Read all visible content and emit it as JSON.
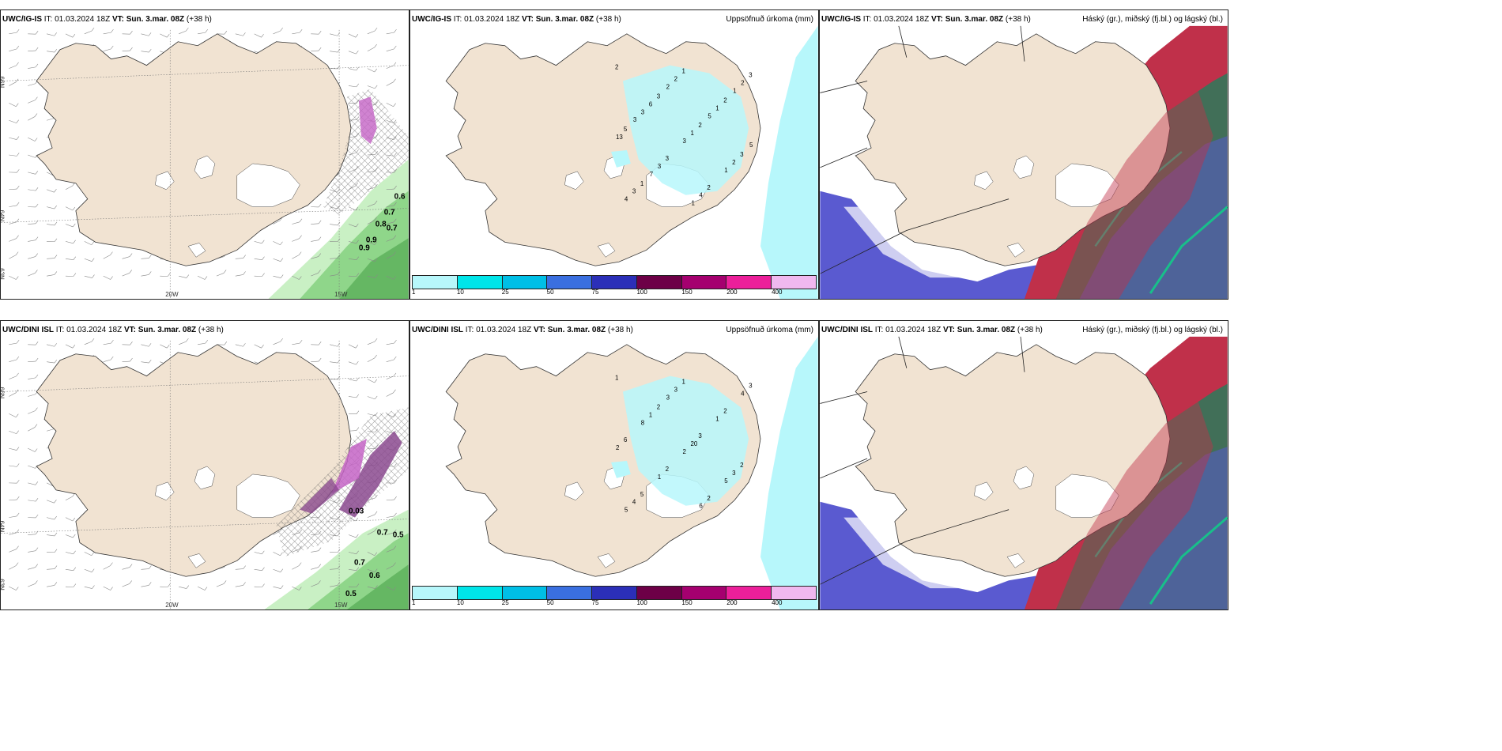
{
  "panels": [
    {
      "id": "ul",
      "model": "UWC/IG-IS",
      "it": "IT: 01.03.2024 18Z",
      "vt_label": "VT:",
      "vt": "Sun. 3.mar. 08Z",
      "lead": "(+38 h)",
      "right": "",
      "type": "wind"
    },
    {
      "id": "um",
      "model": "UWC/IG-IS",
      "it": "IT: 01.03.2024 18Z",
      "vt_label": "VT:",
      "vt": "Sun. 3.mar. 08Z",
      "lead": "(+38 h)",
      "right": "Uppsöfnuð úrkoma (mm)",
      "type": "precip"
    },
    {
      "id": "ur",
      "model": "UWC/IG-IS",
      "it": "IT: 01.03.2024 18Z",
      "vt_label": "VT:",
      "vt": "Sun. 3.mar. 08Z",
      "lead": "(+38 h)",
      "right": "Háský (gr.), miðský (fj.bl.) og lágský (bl.)",
      "type": "cloud"
    },
    {
      "id": "ll",
      "model": "UWC/DINI ISL",
      "it": "IT: 01.03.2024 18Z",
      "vt_label": "VT:",
      "vt": "Sun. 3.mar. 08Z",
      "lead": "(+38 h)",
      "right": "",
      "type": "wind"
    },
    {
      "id": "lm",
      "model": "UWC/DINI ISL",
      "it": "IT: 01.03.2024 18Z",
      "vt_label": "VT:",
      "vt": "Sun. 3.mar. 08Z",
      "lead": "(+38 h)",
      "right": "Uppsöfnuð úrkoma (mm)",
      "type": "precip"
    },
    {
      "id": "lr",
      "model": "UWC/DINI ISL",
      "it": "IT: 01.03.2024 18Z",
      "vt_label": "VT:",
      "vt": "Sun. 3.mar. 08Z",
      "lead": "(+38 h)",
      "right": "Háský (gr.), miðský (fj.bl.) og lágský (bl.)",
      "type": "cloud"
    }
  ],
  "axes": {
    "lon_20w": "20W",
    "lon_15w": "15W",
    "lat_66n": "66N",
    "lat_64n": "64N",
    "lat_63n": "63N"
  },
  "precip_legend": {
    "values": [
      "1",
      "10",
      "25",
      "50",
      "75",
      "100",
      "150",
      "200",
      "400"
    ],
    "colors": [
      "#b7f7fb",
      "#00e5e9",
      "#00bfe6",
      "#3a6fe0",
      "#2b2fb8",
      "#6d0047",
      "#a5006f",
      "#ec1f9a",
      "#f0b8ef"
    ]
  },
  "wind_labels_upper": [
    "0.6",
    "0.7",
    "0.8",
    "0.7",
    "0.9",
    "0.9"
  ],
  "wind_labels_lower": [
    "0.7",
    "0.5",
    "0.7",
    "0.6",
    "0.5",
    "0.03"
  ],
  "precip_upper": [
    "2",
    "3",
    "2",
    "3",
    "1",
    "1",
    "2",
    "5",
    "3",
    "2",
    "3",
    "6",
    "1",
    "2",
    "3",
    "2",
    "1",
    "13",
    "3",
    "4",
    "2",
    "3",
    "3",
    "1",
    "4",
    "2",
    "5",
    "5",
    "7",
    "1",
    "1",
    "3"
  ],
  "precip_lower": [
    "1",
    "2",
    "3",
    "2",
    "5",
    "1",
    "2",
    "6",
    "2",
    "2",
    "3",
    "1",
    "20",
    "3",
    "4",
    "3",
    "1",
    "2",
    "1",
    "6",
    "4",
    "8",
    "2",
    "5",
    "5",
    "3"
  ],
  "colors": {
    "land": "#f1e3d2",
    "snow": "#ffffff",
    "green1": "#c9f0c4",
    "green2": "#8fd68a",
    "green3": "#4aa24a",
    "purple": "#8b4a8f",
    "magenta": "#c464c6",
    "cloud_blue": "#5a5ad0",
    "cloud_red": "#c0304a",
    "cloud_green": "#2a7a5a",
    "cloud_cyan": "#18c08a",
    "sea_cyan": "#b7f7fb"
  }
}
